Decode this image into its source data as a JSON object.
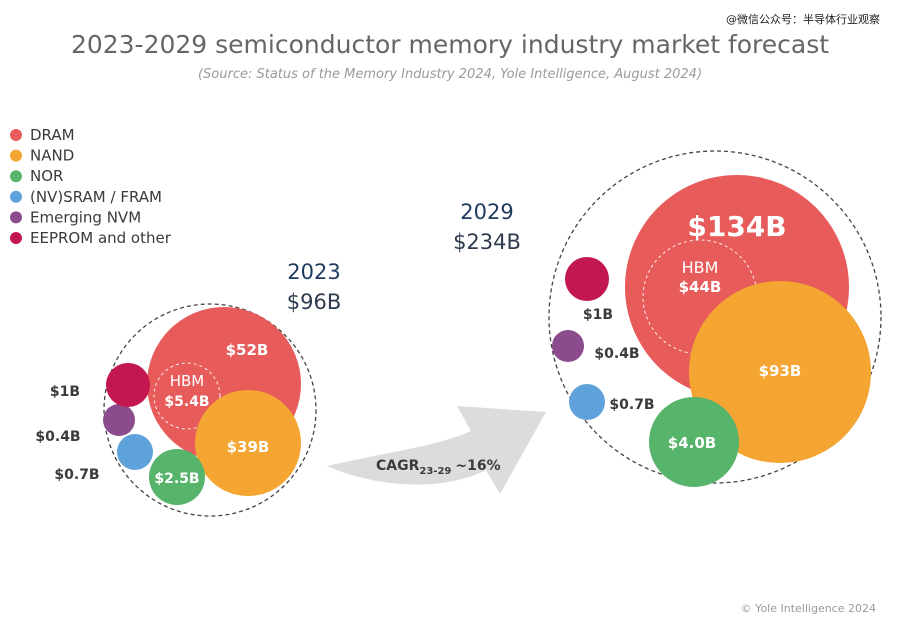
{
  "header": {
    "title": "2023-2029 semiconductor memory industry market forecast",
    "subtitle": "(Source: Status of the Memory Industry 2024, Yole Intelligence, August 2024)",
    "watermark": "@微信公众号：半导体行业观察"
  },
  "footer": {
    "copyright": "© Yole Intelligence 2024"
  },
  "chart_data": {
    "type": "bubble",
    "unit": "USD billions",
    "legend": [
      {
        "name": "DRAM",
        "color": "#E85B5B"
      },
      {
        "name": "NAND",
        "color": "#F5A531"
      },
      {
        "name": "NOR",
        "color": "#57B56B"
      },
      {
        "name": "(NV)SRAM / FRAM",
        "color": "#5FA1DA"
      },
      {
        "name": "Emerging NVM",
        "color": "#8B4B8C"
      },
      {
        "name": "EEPROM and other",
        "color": "#C2184F"
      }
    ],
    "years": [
      {
        "year": "2023",
        "total_label": "$96B",
        "total": 96,
        "segments": [
          {
            "segment": "DRAM",
            "value": 52,
            "label": "$52B"
          },
          {
            "segment": "NAND",
            "value": 39,
            "label": "$39B"
          },
          {
            "segment": "NOR",
            "value": 2.5,
            "label": "$2.5B"
          },
          {
            "segment": "(NV)SRAM / FRAM",
            "value": 0.7,
            "label": "$0.7B"
          },
          {
            "segment": "Emerging NVM",
            "value": 0.4,
            "label": "$0.4B"
          },
          {
            "segment": "EEPROM and other",
            "value": 1,
            "label": "$1B"
          }
        ],
        "hbm": {
          "name": "HBM",
          "value": 5.4,
          "label": "$5.4B"
        }
      },
      {
        "year": "2029",
        "total_label": "$234B",
        "total": 234,
        "segments": [
          {
            "segment": "DRAM",
            "value": 134,
            "label": "$134B"
          },
          {
            "segment": "NAND",
            "value": 93,
            "label": "$93B"
          },
          {
            "segment": "NOR",
            "value": 4.0,
            "label": "$4.0B"
          },
          {
            "segment": "(NV)SRAM / FRAM",
            "value": 0.7,
            "label": "$0.7B"
          },
          {
            "segment": "Emerging NVM",
            "value": 0.4,
            "label": "$0.4B"
          },
          {
            "segment": "EEPROM and other",
            "value": 1,
            "label": "$1B"
          }
        ],
        "hbm": {
          "name": "HBM",
          "value": 44,
          "label": "$44B"
        }
      }
    ],
    "cagr": {
      "prefix": "CAGR",
      "period": "23-29",
      "value": "~16%"
    }
  }
}
